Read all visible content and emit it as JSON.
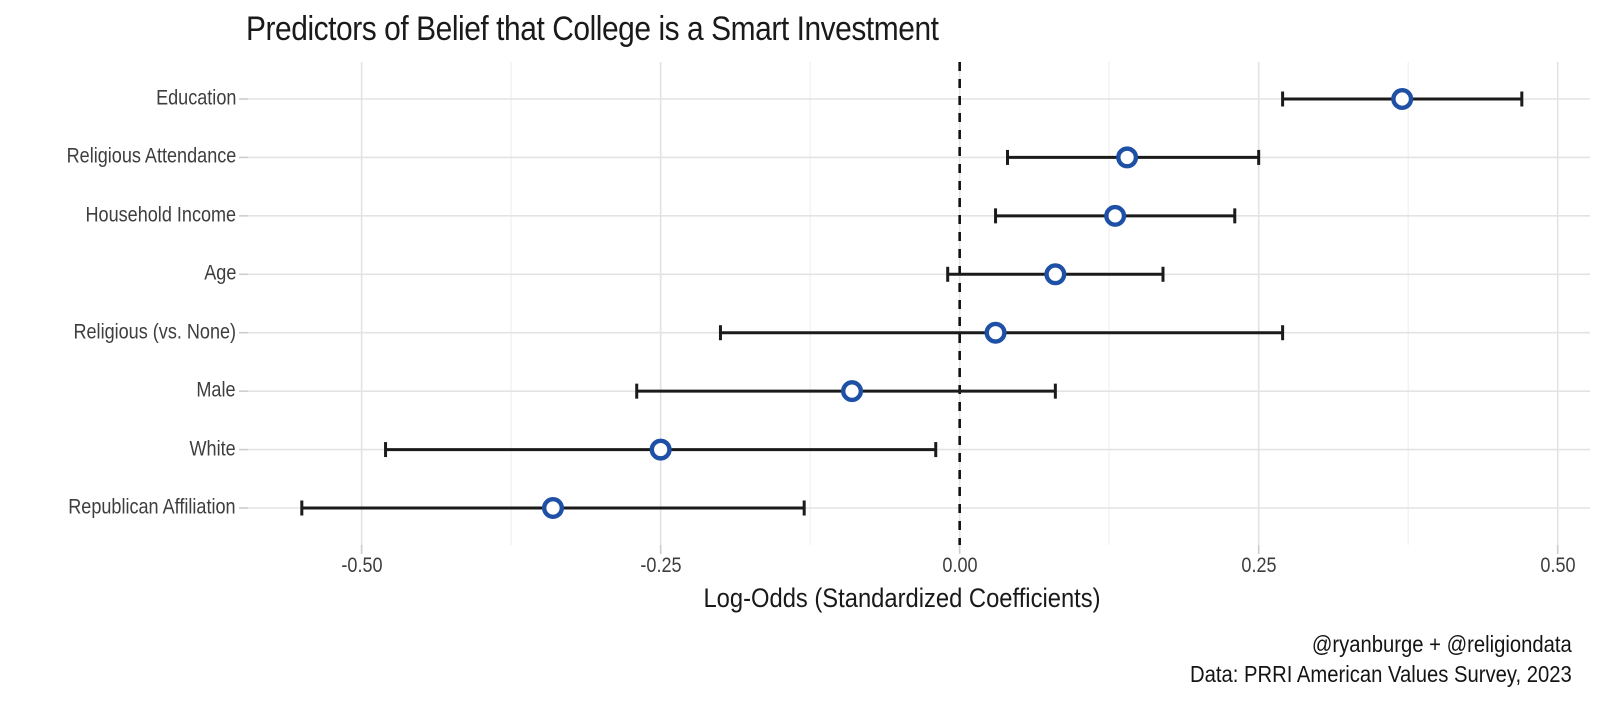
{
  "page": {
    "title": "Predictors of Belief that College is a Smart Investment",
    "xlabel": "Log-Odds (Standardized Coefficients)",
    "caption_line1": "@ryanburge + @religiondata",
    "caption_line2": "Data: PRRI American Values Survey, 2023"
  },
  "colors": {
    "background": "#ffffff",
    "point_stroke": "#1e50a5",
    "point_fill": "#ffffff",
    "errorbar": "#1b1b1b",
    "zero_line": "#111111",
    "grid_major": "#e3e3e3",
    "grid_minor": "#f0f0f0",
    "axis_tick": "#cccccc",
    "axis_text": "#3e3e3e",
    "title_text": "#1a1a1a"
  },
  "chart_data": {
    "type": "scatter",
    "subtype": "coefficient-dot-whisker",
    "title": "Predictors of Belief that College is a Smart Investment",
    "xlabel": "Log-Odds (Standardized Coefficients)",
    "ylabel": "",
    "caption": [
      "@ryanburge + @religiondata",
      "Data: PRRI American Values Survey, 2023"
    ],
    "categories": [
      "Education",
      "Religious Attendance",
      "Household Income",
      "Age",
      "Religious (vs. None)",
      "Male",
      "White",
      "Republican Affiliation"
    ],
    "points": [
      {
        "label": "Education",
        "estimate": 0.37,
        "ci_low": 0.27,
        "ci_high": 0.47
      },
      {
        "label": "Religious Attendance",
        "estimate": 0.14,
        "ci_low": 0.04,
        "ci_high": 0.25
      },
      {
        "label": "Household Income",
        "estimate": 0.13,
        "ci_low": 0.03,
        "ci_high": 0.23
      },
      {
        "label": "Age",
        "estimate": 0.08,
        "ci_low": -0.01,
        "ci_high": 0.17
      },
      {
        "label": "Religious (vs. None)",
        "estimate": 0.03,
        "ci_low": -0.2,
        "ci_high": 0.27
      },
      {
        "label": "Male",
        "estimate": -0.09,
        "ci_low": -0.27,
        "ci_high": 0.08
      },
      {
        "label": "White",
        "estimate": -0.25,
        "ci_low": -0.48,
        "ci_high": -0.02
      },
      {
        "label": "Republican Affiliation",
        "estimate": -0.34,
        "ci_low": -0.55,
        "ci_high": -0.13
      }
    ],
    "x_ticks": [
      -0.5,
      -0.25,
      0,
      0.25,
      0.5
    ],
    "x_tick_labels": [
      "-0.50",
      "-0.25",
      "0.00",
      "0.25",
      "0.50"
    ],
    "x_minor_ticks": [
      -0.375,
      -0.125,
      0.125,
      0.375
    ],
    "xlim": [
      -0.595,
      0.527
    ],
    "zero_line_x": 0,
    "grid": "major+minor",
    "legend": "none"
  }
}
